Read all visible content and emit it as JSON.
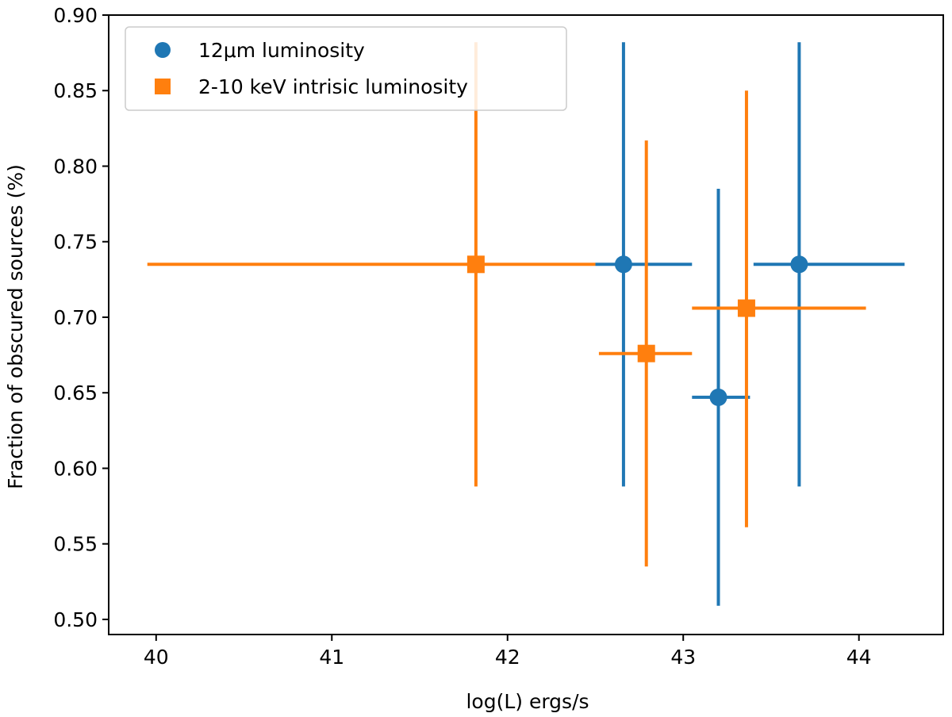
{
  "chart_data": {
    "type": "scatter",
    "title": "",
    "xlabel": "log(L) ergs/s",
    "ylabel": "Fraction of obscured sources (%)",
    "xlim": [
      39.73,
      44.48
    ],
    "ylim": [
      0.49,
      0.9
    ],
    "xticks": [
      40,
      41,
      42,
      43,
      44
    ],
    "yticks": [
      0.5,
      0.55,
      0.6,
      0.65,
      0.7,
      0.75,
      0.8,
      0.85,
      0.9
    ],
    "grid": false,
    "legend_position": "top-left",
    "series": [
      {
        "name": "12μm luminosity",
        "marker": "circle",
        "color": "#1f77b4",
        "points": [
          {
            "x": 42.66,
            "y": 0.735,
            "xlo": 42.5,
            "xhi": 43.05,
            "ylo": 0.588,
            "yhi": 0.882
          },
          {
            "x": 43.2,
            "y": 0.647,
            "xlo": 43.05,
            "xhi": 43.38,
            "ylo": 0.509,
            "yhi": 0.785
          },
          {
            "x": 43.66,
            "y": 0.735,
            "xlo": 43.4,
            "xhi": 44.26,
            "ylo": 0.588,
            "yhi": 0.882
          }
        ]
      },
      {
        "name": "2-10 keV intrisic luminosity",
        "marker": "square",
        "color": "#ff7f0e",
        "points": [
          {
            "x": 41.82,
            "y": 0.735,
            "xlo": 39.95,
            "xhi": 42.5,
            "ylo": 0.588,
            "yhi": 0.882
          },
          {
            "x": 42.79,
            "y": 0.676,
            "xlo": 42.52,
            "xhi": 43.05,
            "ylo": 0.535,
            "yhi": 0.817
          },
          {
            "x": 43.36,
            "y": 0.706,
            "xlo": 43.05,
            "xhi": 44.04,
            "ylo": 0.561,
            "yhi": 0.85
          }
        ]
      }
    ]
  }
}
